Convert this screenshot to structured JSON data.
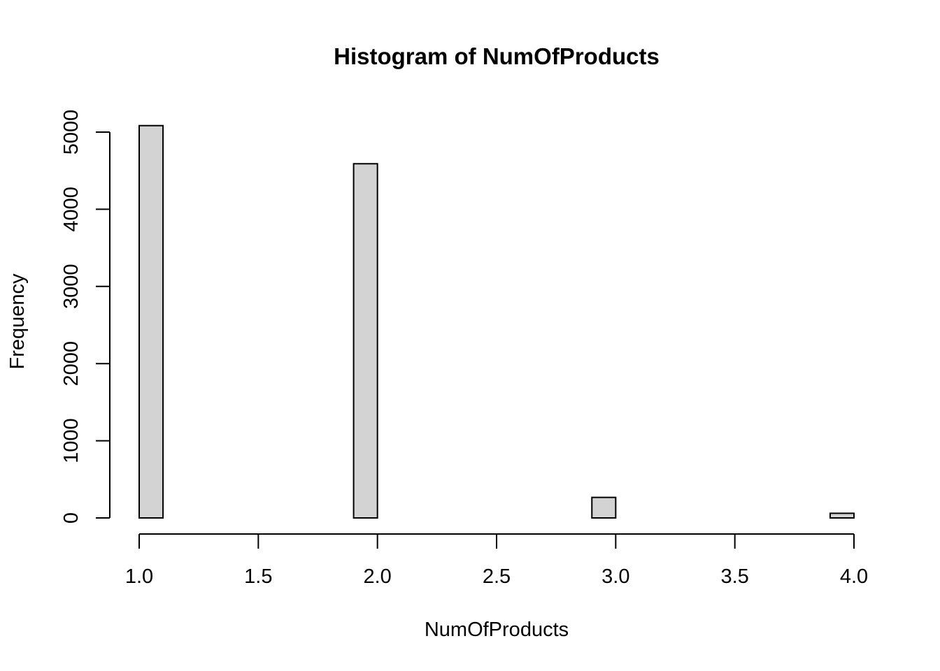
{
  "chart_data": {
    "type": "bar",
    "title": "Histogram of NumOfProducts",
    "xlabel": "NumOfProducts",
    "ylabel": "Frequency",
    "bins": [
      {
        "x0": 1.0,
        "x1": 1.1,
        "count": 5084
      },
      {
        "x0": 1.1,
        "x1": 1.2,
        "count": 0
      },
      {
        "x0": 1.2,
        "x1": 1.3,
        "count": 0
      },
      {
        "x0": 1.3,
        "x1": 1.4,
        "count": 0
      },
      {
        "x0": 1.4,
        "x1": 1.5,
        "count": 0
      },
      {
        "x0": 1.5,
        "x1": 1.6,
        "count": 0
      },
      {
        "x0": 1.6,
        "x1": 1.7,
        "count": 0
      },
      {
        "x0": 1.7,
        "x1": 1.8,
        "count": 0
      },
      {
        "x0": 1.8,
        "x1": 1.9,
        "count": 0
      },
      {
        "x0": 1.9,
        "x1": 2.0,
        "count": 4590
      },
      {
        "x0": 2.0,
        "x1": 2.1,
        "count": 0
      },
      {
        "x0": 2.1,
        "x1": 2.2,
        "count": 0
      },
      {
        "x0": 2.2,
        "x1": 2.3,
        "count": 0
      },
      {
        "x0": 2.3,
        "x1": 2.4,
        "count": 0
      },
      {
        "x0": 2.4,
        "x1": 2.5,
        "count": 0
      },
      {
        "x0": 2.5,
        "x1": 2.6,
        "count": 0
      },
      {
        "x0": 2.6,
        "x1": 2.7,
        "count": 0
      },
      {
        "x0": 2.7,
        "x1": 2.8,
        "count": 0
      },
      {
        "x0": 2.8,
        "x1": 2.9,
        "count": 0
      },
      {
        "x0": 2.9,
        "x1": 3.0,
        "count": 266
      },
      {
        "x0": 3.0,
        "x1": 3.1,
        "count": 0
      },
      {
        "x0": 3.1,
        "x1": 3.2,
        "count": 0
      },
      {
        "x0": 3.2,
        "x1": 3.3,
        "count": 0
      },
      {
        "x0": 3.3,
        "x1": 3.4,
        "count": 0
      },
      {
        "x0": 3.4,
        "x1": 3.5,
        "count": 0
      },
      {
        "x0": 3.5,
        "x1": 3.6,
        "count": 0
      },
      {
        "x0": 3.6,
        "x1": 3.7,
        "count": 0
      },
      {
        "x0": 3.7,
        "x1": 3.8,
        "count": 0
      },
      {
        "x0": 3.8,
        "x1": 3.9,
        "count": 0
      },
      {
        "x0": 3.9,
        "x1": 4.0,
        "count": 60
      }
    ],
    "xlim": [
      1.0,
      4.0
    ],
    "ylim": [
      0,
      5000
    ],
    "x_ticks": [
      "1.0",
      "1.5",
      "2.0",
      "2.5",
      "3.0",
      "3.5",
      "4.0"
    ],
    "y_ticks": [
      "0",
      "1000",
      "2000",
      "3000",
      "4000",
      "5000"
    ],
    "bar_fill": "#d3d3d3",
    "bar_stroke": "#000000",
    "grid": false
  }
}
